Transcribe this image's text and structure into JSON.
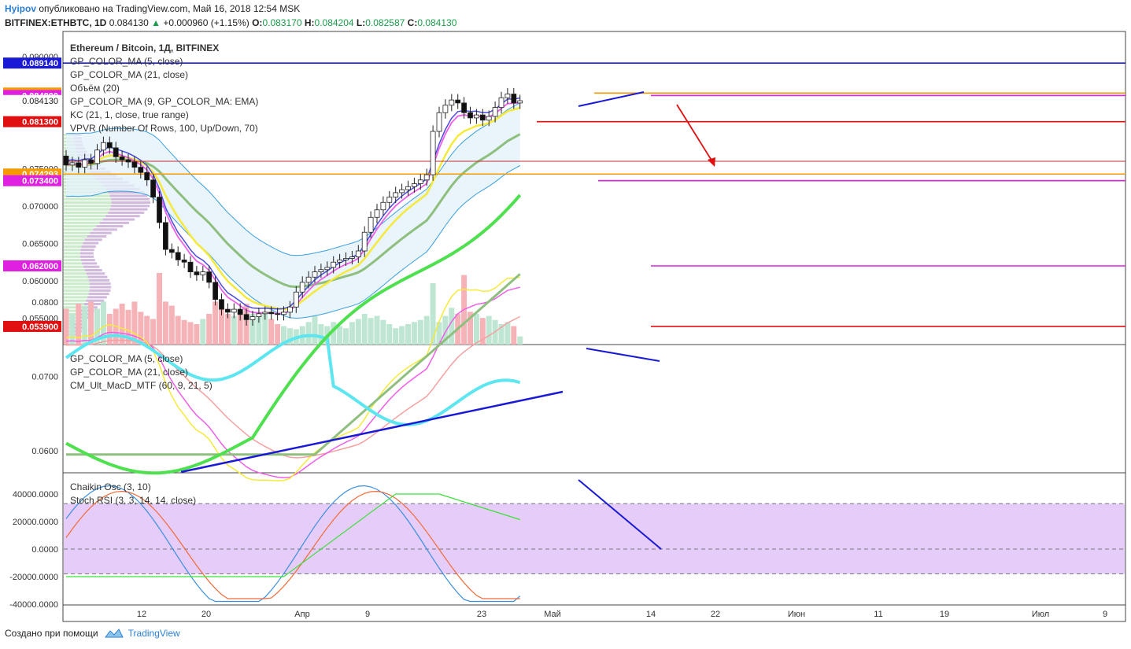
{
  "header": {
    "user": "Hyipov",
    "published": "опубликовано на TradingView.com, Май 16, 2018 12:54 MSK",
    "symbol": "BITFINEX:ETHBTC, 1D",
    "last": "0.084130",
    "change": "+0.000960 (+1.15%)",
    "o_label": "O:",
    "o": "0.083170",
    "h_label": "H:",
    "h": "0.084204",
    "l_label": "L:",
    "l": "0.082587",
    "c_label": "C:",
    "c": "0.084130"
  },
  "main_pane": {
    "title": "Ethereum / Bitcoin, 1Д, BITFINEX",
    "indicators": [
      "GP_COLOR_MA (5, close)",
      "GP_COLOR_MA (21, close)",
      "Объём (20)",
      "GP_COLOR_MA (9, GP_COLOR_MA: EMA)",
      "KC (21, 1, close, true range)",
      "VPVR (Number Of Rows, 100, Up/Down, 70)"
    ],
    "price_ticks": [
      "0.090000",
      "0.075000",
      "0.070000",
      "0.065000",
      "0.060000",
      "0.055000"
    ],
    "price_labels": [
      {
        "text": "0.089140",
        "color": "#1a1ad6"
      },
      {
        "text": "0.085130",
        "color": "#f59a00"
      },
      {
        "text": "0.084800",
        "color": "#e020e0"
      },
      {
        "text": "0.084130",
        "color": "#ffffff"
      },
      {
        "text": "0.081300",
        "color": "#e01010"
      },
      {
        "text": "0.074293",
        "color": "#f59a00"
      },
      {
        "text": "0.073400",
        "color": "#e020e0"
      },
      {
        "text": "0.062000",
        "color": "#e020e0"
      },
      {
        "text": "0.053900",
        "color": "#e01010"
      }
    ]
  },
  "macd_pane": {
    "indicators": [
      "GP_COLOR_MA (5, close)",
      "GP_COLOR_MA (21, close)",
      "CM_Ult_MacD_MTF (60, 9, 21, 5)"
    ],
    "ticks": [
      "0.0800",
      "0.0700",
      "0.0600"
    ]
  },
  "osc_pane": {
    "indicators": [
      "Chaikin Osc (3, 10)",
      "Stoch RSI (3, 3, 14, 14, close)"
    ],
    "ticks": [
      "40000.0000",
      "20000.0000",
      "0.0000",
      "-20000.0000",
      "-40000.0000"
    ]
  },
  "chart_data": {
    "type": "candlestick",
    "title": "Ethereum / Bitcoin, 1Д, BITFINEX",
    "x_axis_labels": [
      "12",
      "20",
      "Апр",
      "9",
      "23",
      "Май",
      "14",
      "22",
      "Июн",
      "11",
      "19",
      "Июл",
      "9"
    ],
    "ylim": [
      0.0535,
      0.0905
    ],
    "horizontal_levels": [
      {
        "value": 0.08914,
        "color": "#1a1ad6"
      },
      {
        "value": 0.08513,
        "color": "#f59a00"
      },
      {
        "value": 0.0848,
        "color": "#e020e0"
      },
      {
        "value": 0.0813,
        "color": "#e01010"
      },
      {
        "value": 0.07429,
        "color": "#f59a00"
      },
      {
        "value": 0.0734,
        "color": "#e020e0"
      },
      {
        "value": 0.062,
        "color": "#e020e0"
      },
      {
        "value": 0.0539,
        "color": "#e01010"
      }
    ],
    "close": [
      0.0755,
      0.0758,
      0.0752,
      0.0762,
      0.0757,
      0.0775,
      0.0785,
      0.0778,
      0.0766,
      0.0762,
      0.0759,
      0.0752,
      0.0745,
      0.0735,
      0.0712,
      0.0678,
      0.0642,
      0.0638,
      0.0628,
      0.0625,
      0.0612,
      0.0608,
      0.0612,
      0.0598,
      0.0575,
      0.0562,
      0.0558,
      0.0562,
      0.0555,
      0.0548,
      0.0552,
      0.0556,
      0.0558,
      0.0556,
      0.0555,
      0.0558,
      0.0565,
      0.0585,
      0.0598,
      0.0605,
      0.0612,
      0.0615,
      0.0618,
      0.0625,
      0.0628,
      0.063,
      0.0632,
      0.064,
      0.0665,
      0.0685,
      0.0695,
      0.0705,
      0.0712,
      0.0718,
      0.0722,
      0.0726,
      0.073,
      0.0735,
      0.0742,
      0.08,
      0.0825,
      0.0835,
      0.0842,
      0.0838,
      0.0825,
      0.0818,
      0.0822,
      0.0815,
      0.082,
      0.0832,
      0.0845,
      0.085,
      0.0838,
      0.0841
    ],
    "volume": [
      35,
      30,
      40,
      38,
      42,
      35,
      42,
      30,
      35,
      40,
      34,
      42,
      32,
      28,
      25,
      70,
      42,
      38,
      28,
      24,
      22,
      20,
      25,
      30,
      42,
      35,
      30,
      28,
      32,
      40,
      30,
      28,
      30,
      25,
      20,
      18,
      16,
      15,
      18,
      22,
      28,
      20,
      18,
      22,
      18,
      16,
      22,
      25,
      30,
      26,
      28,
      24,
      20,
      16,
      18,
      20,
      22,
      24,
      28,
      60,
      22,
      28,
      36,
      30,
      68,
      32,
      30,
      26,
      28,
      24,
      20,
      22,
      18,
      8
    ]
  }
}
